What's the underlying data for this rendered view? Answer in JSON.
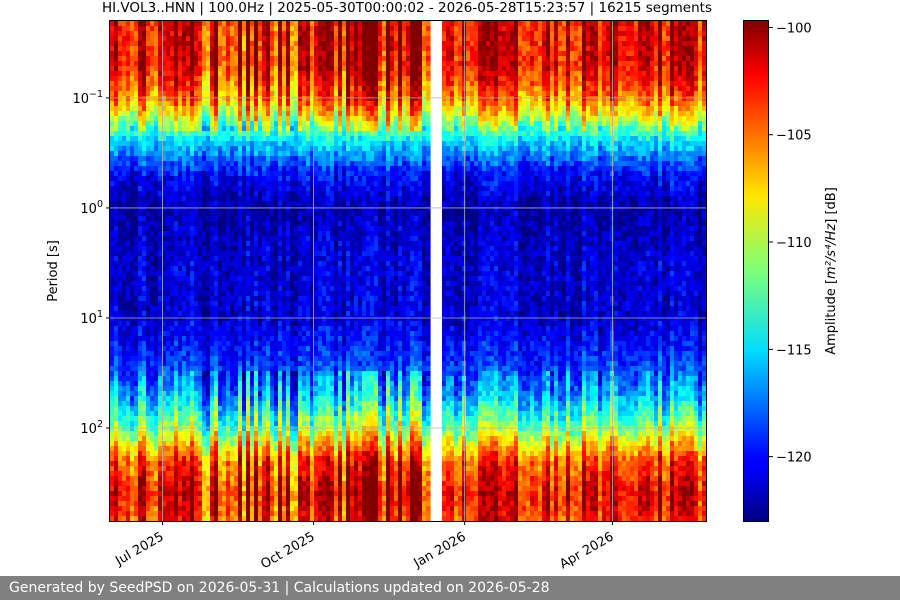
{
  "chart_data": {
    "type": "heatmap",
    "title": "HI.VOL3..HNN | 100.0Hz | 2025-05-30T00:00:02 - 2026-05-28T15:23:57 | 16215 segments",
    "ylabel": "Period [s]",
    "y_scale": "log",
    "y_inverted": true,
    "ylim": [
      0.02,
      700
    ],
    "y_ticks": [
      {
        "value": 0.1,
        "base": "10",
        "exp": "−1"
      },
      {
        "value": 1,
        "base": "10",
        "exp": "0"
      },
      {
        "value": 10,
        "base": "10",
        "exp": "1"
      },
      {
        "value": 100,
        "base": "10",
        "exp": "2"
      }
    ],
    "x_ticks": [
      "Jul 2025",
      "Oct 2025",
      "Jan 2026",
      "Apr 2026"
    ],
    "x_tick_dates": [
      "2025-07-01",
      "2025-10-01",
      "2026-01-01",
      "2026-04-01"
    ],
    "xlim": [
      "2025-05-30",
      "2026-05-28"
    ],
    "data_gap": [
      "2025-12-13",
      "2025-12-17"
    ],
    "colorbar": {
      "label_prefix": "Amplitude [",
      "label_units": "m²/s⁴/Hz",
      "label_suffix": "] [dB]",
      "colormap": "jet",
      "range": [
        -123,
        -99.7
      ],
      "ticks": [
        "−100",
        "−105",
        "−110",
        "−115",
        "−120"
      ],
      "tick_values": [
        -100,
        -105,
        -110,
        -115,
        -120
      ]
    },
    "grid": true,
    "amplitude_profile": [
      {
        "period": 0.02,
        "db": -102
      },
      {
        "period": 0.05,
        "db": -102
      },
      {
        "period": 0.1,
        "db": -105
      },
      {
        "period": 0.15,
        "db": -109
      },
      {
        "period": 0.25,
        "db": -115
      },
      {
        "period": 0.5,
        "db": -120
      },
      {
        "period": 1,
        "db": -122
      },
      {
        "period": 3,
        "db": -121
      },
      {
        "period": 10,
        "db": -121
      },
      {
        "period": 25,
        "db": -119
      },
      {
        "period": 50,
        "db": -116
      },
      {
        "period": 100,
        "db": -111
      },
      {
        "period": 200,
        "db": -104
      },
      {
        "period": 400,
        "db": -102
      },
      {
        "period": 700,
        "db": -103
      }
    ]
  },
  "footer": {
    "text": "Generated by SeedPSD on 2026-05-31 | Calculations updated on 2026-05-28"
  }
}
